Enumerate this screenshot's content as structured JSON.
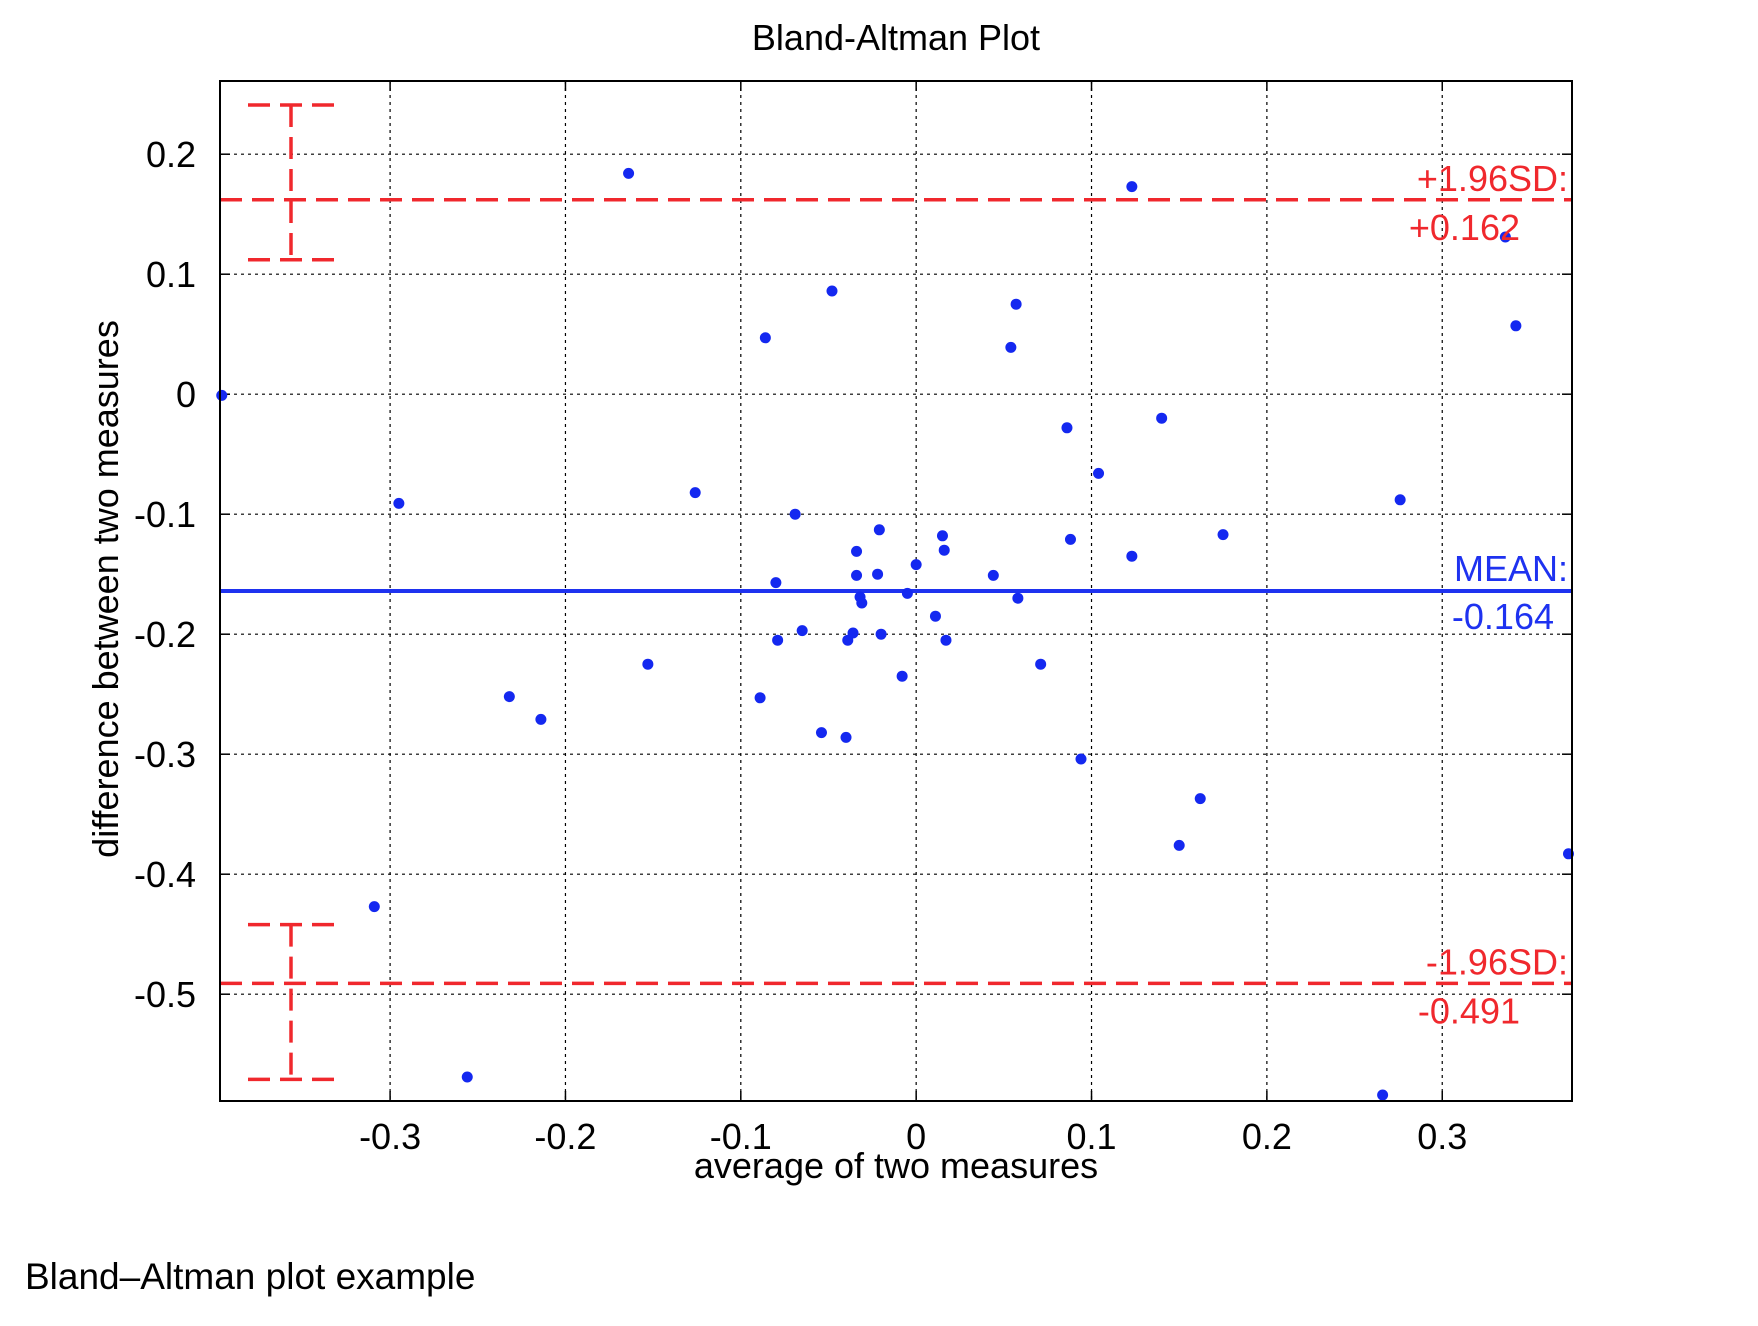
{
  "caption": "Bland–Altman plot example",
  "chart_data": {
    "type": "scatter",
    "title": "Bland-Altman Plot",
    "xlabel": "average of two measures",
    "ylabel": "difference between two measures",
    "xlim": [
      -0.397,
      0.374
    ],
    "ylim": [
      -0.589,
      0.261
    ],
    "xticks": [
      -0.3,
      -0.2,
      -0.1,
      0,
      0.1,
      0.2,
      0.3
    ],
    "xtick_labels": [
      "-0.3",
      "-0.2",
      "-0.1",
      "0",
      "0.1",
      "0.2",
      "0.3"
    ],
    "yticks": [
      0.2,
      0.1,
      0,
      -0.1,
      -0.2,
      -0.3,
      -0.4,
      -0.5
    ],
    "ytick_labels": [
      "0.2",
      "0.1",
      "0",
      "-0.1",
      "-0.2",
      "-0.3",
      "-0.4",
      "-0.5"
    ],
    "grid": true,
    "colors": {
      "points": "#1428f0",
      "mean_line": "#1e32f0",
      "limit_lines": "#f0282d",
      "grid": "#000000"
    },
    "mean_line": {
      "value": -0.164,
      "label_line1": "MEAN:",
      "label_line2": "-0.164"
    },
    "upper_limit": {
      "value": 0.162,
      "label_line1": "+1.96SD:",
      "label_line2": "+0.162",
      "ci_top": 0.241,
      "ci_bottom": 0.112
    },
    "lower_limit": {
      "value": -0.491,
      "label_line1": "-1.96SD:",
      "label_line2": "-0.491",
      "ci_top": -0.442,
      "ci_bottom": -0.571
    },
    "points": [
      {
        "x": -0.396,
        "y": -0.001
      },
      {
        "x": -0.164,
        "y": 0.184
      },
      {
        "x": 0.123,
        "y": 0.173
      },
      {
        "x": -0.048,
        "y": 0.086
      },
      {
        "x": 0.057,
        "y": 0.075
      },
      {
        "x": -0.086,
        "y": 0.047
      },
      {
        "x": 0.054,
        "y": 0.039
      },
      {
        "x": 0.336,
        "y": 0.131
      },
      {
        "x": 0.342,
        "y": 0.057
      },
      {
        "x": 0.14,
        "y": -0.02
      },
      {
        "x": 0.086,
        "y": -0.028
      },
      {
        "x": 0.104,
        "y": -0.066
      },
      {
        "x": -0.295,
        "y": -0.091
      },
      {
        "x": -0.126,
        "y": -0.082
      },
      {
        "x": 0.276,
        "y": -0.088
      },
      {
        "x": -0.069,
        "y": -0.1
      },
      {
        "x": -0.021,
        "y": -0.113
      },
      {
        "x": 0.015,
        "y": -0.118
      },
      {
        "x": 0.175,
        "y": -0.117
      },
      {
        "x": 0.088,
        "y": -0.121
      },
      {
        "x": 0.016,
        "y": -0.13
      },
      {
        "x": -0.034,
        "y": -0.131
      },
      {
        "x": 0.123,
        "y": -0.135
      },
      {
        "x": 0.0,
        "y": -0.142
      },
      {
        "x": -0.022,
        "y": -0.15
      },
      {
        "x": -0.034,
        "y": -0.151
      },
      {
        "x": 0.044,
        "y": -0.151
      },
      {
        "x": -0.08,
        "y": -0.157
      },
      {
        "x": -0.005,
        "y": -0.166
      },
      {
        "x": -0.032,
        "y": -0.169
      },
      {
        "x": 0.058,
        "y": -0.17
      },
      {
        "x": -0.031,
        "y": -0.174
      },
      {
        "x": 0.011,
        "y": -0.185
      },
      {
        "x": -0.065,
        "y": -0.197
      },
      {
        "x": -0.036,
        "y": -0.199
      },
      {
        "x": -0.02,
        "y": -0.2
      },
      {
        "x": -0.079,
        "y": -0.205
      },
      {
        "x": -0.039,
        "y": -0.205
      },
      {
        "x": 0.017,
        "y": -0.205
      },
      {
        "x": -0.153,
        "y": -0.225
      },
      {
        "x": 0.071,
        "y": -0.225
      },
      {
        "x": -0.008,
        "y": -0.235
      },
      {
        "x": -0.232,
        "y": -0.252
      },
      {
        "x": -0.089,
        "y": -0.253
      },
      {
        "x": -0.214,
        "y": -0.271
      },
      {
        "x": -0.054,
        "y": -0.282
      },
      {
        "x": -0.04,
        "y": -0.286
      },
      {
        "x": 0.094,
        "y": -0.304
      },
      {
        "x": 0.162,
        "y": -0.337
      },
      {
        "x": 0.15,
        "y": -0.376
      },
      {
        "x": 0.372,
        "y": -0.383
      },
      {
        "x": -0.309,
        "y": -0.427
      },
      {
        "x": -0.256,
        "y": -0.569
      },
      {
        "x": 0.266,
        "y": -0.584
      }
    ]
  }
}
